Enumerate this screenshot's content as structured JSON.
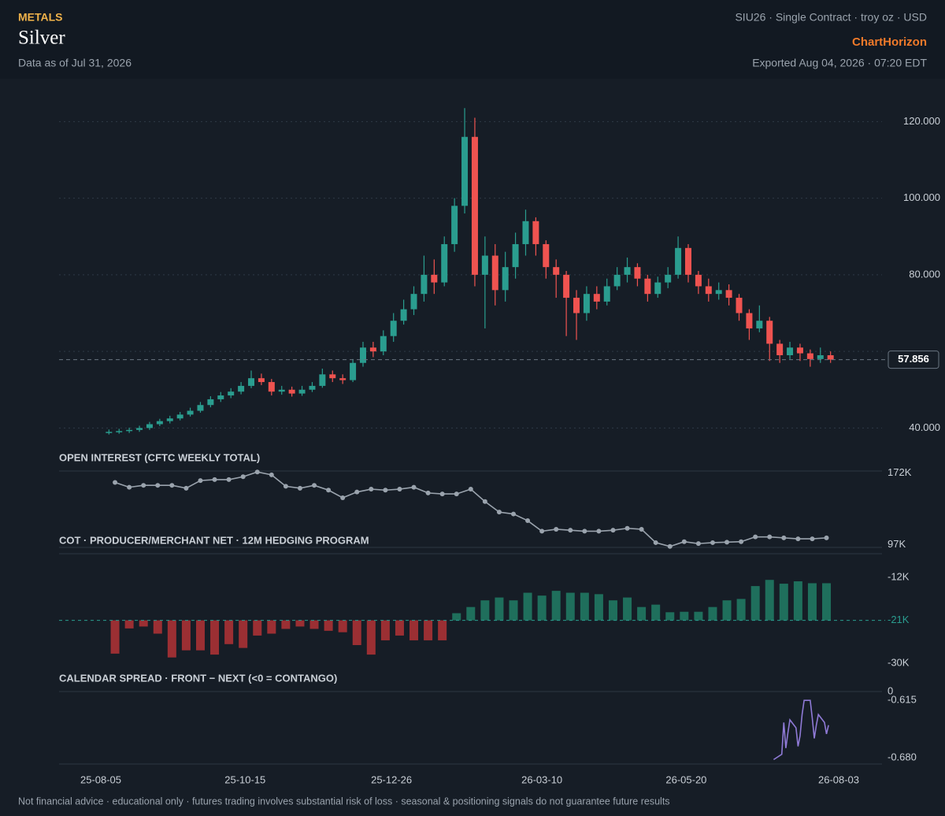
{
  "header": {
    "category": "METALS",
    "title": "Silver",
    "data_as_of": "Data as of Jul 31, 2026",
    "contract": "SIU26 · Single Contract · troy oz · USD",
    "brand": "ChartHorizon",
    "exported": "Exported Aug 04, 2026 · 07:20 EDT"
  },
  "footer": "Not financial advice · educational only · futures trading involves substantial risk of loss · seasonal & positioning signals do not guarantee future results",
  "x_axis": {
    "xlim": [
      "25-08-05",
      "26-08-03"
    ],
    "xticks": [
      "25-08-05",
      "25-10-15",
      "25-12-26",
      "26-03-10",
      "26-05-20",
      "26-08-03"
    ]
  },
  "chart_data": [
    {
      "type": "candlestick",
      "x": [
        "25-08-09",
        "25-08-14",
        "25-08-19",
        "25-08-24",
        "25-08-29",
        "25-09-03",
        "25-09-08",
        "25-09-13",
        "25-09-18",
        "25-09-23",
        "25-09-28",
        "25-10-03",
        "25-10-08",
        "25-10-13",
        "25-10-18",
        "25-10-23",
        "25-10-28",
        "25-11-02",
        "25-11-07",
        "25-11-12",
        "25-11-17",
        "25-11-22",
        "25-11-27",
        "25-12-02",
        "25-12-07",
        "25-12-12",
        "25-12-17",
        "25-12-22",
        "25-12-27",
        "26-01-01",
        "26-01-06",
        "26-01-11",
        "26-01-16",
        "26-01-21",
        "26-01-26",
        "26-01-31",
        "26-02-05",
        "26-02-10",
        "26-02-15",
        "26-02-20",
        "26-02-25",
        "26-03-02",
        "26-03-07",
        "26-03-12",
        "26-03-17",
        "26-03-22",
        "26-03-27",
        "26-04-01",
        "26-04-06",
        "26-04-11",
        "26-04-16",
        "26-04-21",
        "26-04-26",
        "26-05-01",
        "26-05-06",
        "26-05-11",
        "26-05-16",
        "26-05-21",
        "26-05-26",
        "26-05-31",
        "26-06-05",
        "26-06-10",
        "26-06-15",
        "26-06-20",
        "26-06-25",
        "26-06-30",
        "26-07-05",
        "26-07-10",
        "26-07-15",
        "26-07-20",
        "26-07-25",
        "26-07-30"
      ],
      "open": [
        38.8,
        39.0,
        39.2,
        39.5,
        40.0,
        41.0,
        41.8,
        42.5,
        43.5,
        44.5,
        46.0,
        47.5,
        48.5,
        49.5,
        51.0,
        53.0,
        52.0,
        49.5,
        50.0,
        49.0,
        50.0,
        51.0,
        54.0,
        53.0,
        52.5,
        57.0,
        61.0,
        60.0,
        64.0,
        68.0,
        71.0,
        75.0,
        80.0,
        78.0,
        88.0,
        98.0,
        116.0,
        80.0,
        85.0,
        76.0,
        82.0,
        88.0,
        94.0,
        88.0,
        82.0,
        80.0,
        74.0,
        70.0,
        75.0,
        73.0,
        77.0,
        80.0,
        82.0,
        79.0,
        75.0,
        78.0,
        80.0,
        87.0,
        80.0,
        77.0,
        75.0,
        76.0,
        74.0,
        70.0,
        66.0,
        68.0,
        62.0,
        59.0,
        61.0,
        59.5,
        58.0,
        59.0
      ],
      "high": [
        39.6,
        39.8,
        40.1,
        40.6,
        41.6,
        42.4,
        43.2,
        44.2,
        45.3,
        46.8,
        48.3,
        49.4,
        50.4,
        52.0,
        55.0,
        54.2,
        52.8,
        51.0,
        50.8,
        51.0,
        52.0,
        55.5,
        55.0,
        54.0,
        58.0,
        62.5,
        62.5,
        65.5,
        70.0,
        73.5,
        77.0,
        85.0,
        84.0,
        90.0,
        100.0,
        123.5,
        121.0,
        90.0,
        88.0,
        86.0,
        91.0,
        97.0,
        95.0,
        89.0,
        84.0,
        81.0,
        76.0,
        77.0,
        77.0,
        79.0,
        82.0,
        84.5,
        83.0,
        80.0,
        79.5,
        82.0,
        90.0,
        88.0,
        81.0,
        79.0,
        78.0,
        77.5,
        75.0,
        71.0,
        72.0,
        69.0,
        63.0,
        62.5,
        62.0,
        60.5,
        61.0,
        60.0
      ],
      "low": [
        38.3,
        38.5,
        38.7,
        39.0,
        39.5,
        40.5,
        41.2,
        42.0,
        43.0,
        44.0,
        45.4,
        46.8,
        47.8,
        48.8,
        50.4,
        51.2,
        48.5,
        48.7,
        48.2,
        48.4,
        49.4,
        50.5,
        52.0,
        51.5,
        52.0,
        56.0,
        58.5,
        59.0,
        62.5,
        67.0,
        69.5,
        73.0,
        75.0,
        77.0,
        86.0,
        96.0,
        77.0,
        66.0,
        72.0,
        73.0,
        79.0,
        85.0,
        85.0,
        79.0,
        74.0,
        64.0,
        63.0,
        68.0,
        71.0,
        72.0,
        76.0,
        78.0,
        77.0,
        73.0,
        74.0,
        76.5,
        79.0,
        78.0,
        75.0,
        73.0,
        73.5,
        72.0,
        68.0,
        63.0,
        65.0,
        57.5,
        57.0,
        58.0,
        57.5,
        56.0,
        57.0,
        57.0
      ],
      "close": [
        39.0,
        39.2,
        39.5,
        40.0,
        41.0,
        41.8,
        42.5,
        43.5,
        44.5,
        46.0,
        47.5,
        48.5,
        49.5,
        51.0,
        53.0,
        52.0,
        49.5,
        50.0,
        49.0,
        50.0,
        51.0,
        54.0,
        53.0,
        52.5,
        57.0,
        61.0,
        60.0,
        64.0,
        68.0,
        71.0,
        75.0,
        80.0,
        78.0,
        88.0,
        98.0,
        116.0,
        80.0,
        85.0,
        76.0,
        82.0,
        88.0,
        94.0,
        88.0,
        82.0,
        80.0,
        74.0,
        70.0,
        75.0,
        73.0,
        77.0,
        80.0,
        82.0,
        79.0,
        75.0,
        78.0,
        80.0,
        87.0,
        80.0,
        77.0,
        75.0,
        76.0,
        74.0,
        70.0,
        66.0,
        68.0,
        62.0,
        59.0,
        61.0,
        59.5,
        58.0,
        59.0,
        57.856
      ],
      "up_color": "#2a9d8f",
      "down_color": "#ef5350",
      "ylim": [
        37,
        125
      ],
      "yticks": [
        {
          "value": 40,
          "label": "40.000"
        },
        {
          "value": 80,
          "label": "80.000"
        },
        {
          "value": 100,
          "label": "100.000"
        },
        {
          "value": 120,
          "label": "120.000"
        }
      ],
      "gridlines": [
        40,
        60,
        80,
        100,
        120
      ],
      "grid": true
    },
    {
      "type": "line",
      "title": "OPEN INTEREST (CFTC WEEKLY TOTAL)",
      "x": [
        "25-08-12",
        "25-08-19",
        "25-08-26",
        "25-09-02",
        "25-09-09",
        "25-09-16",
        "25-09-23",
        "25-09-30",
        "25-10-07",
        "25-10-14",
        "25-10-21",
        "25-10-28",
        "25-11-04",
        "25-11-11",
        "25-11-18",
        "25-11-25",
        "25-12-02",
        "25-12-09",
        "25-12-16",
        "25-12-23",
        "25-12-30",
        "26-01-06",
        "26-01-13",
        "26-01-20",
        "26-01-27",
        "26-02-03",
        "26-02-10",
        "26-02-17",
        "26-02-24",
        "26-03-03",
        "26-03-10",
        "26-03-17",
        "26-03-24",
        "26-03-31",
        "26-04-07",
        "26-04-14",
        "26-04-21",
        "26-04-28",
        "26-05-05",
        "26-05-12",
        "26-05-19",
        "26-05-26",
        "26-06-02",
        "26-06-09",
        "26-06-16",
        "26-06-23",
        "26-06-30",
        "26-07-07",
        "26-07-14",
        "26-07-21",
        "26-07-28"
      ],
      "values": [
        162000,
        157000,
        159000,
        159000,
        159000,
        156000,
        164000,
        165000,
        165000,
        168000,
        173000,
        170000,
        158000,
        156000,
        159000,
        154000,
        146000,
        152000,
        155000,
        154000,
        155000,
        157000,
        151000,
        150000,
        150000,
        155000,
        142000,
        131000,
        129000,
        122000,
        111000,
        113000,
        112000,
        111000,
        111000,
        112000,
        114000,
        113000,
        99000,
        95000,
        100000,
        98000,
        99000,
        99500,
        100000,
        105000,
        105000,
        104000,
        103000,
        103000,
        104000
      ],
      "color": "#9aa3ad",
      "ylim": [
        94000,
        174000
      ],
      "yticks": [
        {
          "value": 172000,
          "label": "172K"
        },
        {
          "value": 97000,
          "label": "97K"
        }
      ],
      "markers": true
    },
    {
      "type": "bar",
      "title": "COT · PRODUCER/MERCHANT NET · 12M HEDGING PROGRAM",
      "x": [
        "25-08-12",
        "25-08-19",
        "25-08-26",
        "25-09-02",
        "25-09-09",
        "25-09-16",
        "25-09-23",
        "25-09-30",
        "25-10-07",
        "25-10-14",
        "25-10-21",
        "25-10-28",
        "25-11-04",
        "25-11-11",
        "25-11-18",
        "25-11-25",
        "25-12-02",
        "25-12-09",
        "25-12-16",
        "25-12-23",
        "25-12-30",
        "26-01-06",
        "26-01-13",
        "26-01-20",
        "26-01-27",
        "26-02-03",
        "26-02-10",
        "26-02-17",
        "26-02-24",
        "26-03-03",
        "26-03-10",
        "26-03-17",
        "26-03-24",
        "26-03-31",
        "26-04-07",
        "26-04-14",
        "26-04-21",
        "26-04-28",
        "26-05-05",
        "26-05-12",
        "26-05-19",
        "26-05-26",
        "26-06-02",
        "26-06-09",
        "26-06-16",
        "26-06-23",
        "26-06-30",
        "26-07-07",
        "26-07-14",
        "26-07-21",
        "26-07-28"
      ],
      "values": [
        -28000,
        -22700,
        -22300,
        -23800,
        -28800,
        -27300,
        -27300,
        -28200,
        -26000,
        -26800,
        -24200,
        -23800,
        -22800,
        -22300,
        -22800,
        -23200,
        -23500,
        -26200,
        -28200,
        -25200,
        -24200,
        -25200,
        -25200,
        -25200,
        -19500,
        -18200,
        -16800,
        -16200,
        -16800,
        -15200,
        -15800,
        -14800,
        -15200,
        -15200,
        -15500,
        -16800,
        -16200,
        -18200,
        -17700,
        -19300,
        -19200,
        -19200,
        -18200,
        -16800,
        -16500,
        -13800,
        -12500,
        -13300,
        -12800,
        -13200,
        -13200
      ],
      "baseline": -21000,
      "up_color": "#1f6f5c",
      "down_color": "#9b2f33",
      "baseline_color": "#2a9d8f",
      "ylim": [
        -31000,
        -7000
      ],
      "yticks": [
        {
          "value": -12000,
          "label": "-12K"
        },
        {
          "value": -21000,
          "label": "-21K"
        },
        {
          "value": -30000,
          "label": "-30K"
        }
      ]
    },
    {
      "type": "line",
      "title": "CALENDAR SPREAD · FRONT − NEXT (<0 = CONTANGO)",
      "corner_label": "0",
      "x": [
        "26-07-02",
        "26-07-06",
        "26-07-07",
        "26-07-08",
        "26-07-09",
        "26-07-10",
        "26-07-13",
        "26-07-14",
        "26-07-15",
        "26-07-16",
        "26-07-17",
        "26-07-20",
        "26-07-21",
        "26-07-22",
        "26-07-23",
        "26-07-24",
        "26-07-27",
        "26-07-28",
        "26-07-29"
      ],
      "values": [
        -0.682,
        -0.676,
        -0.64,
        -0.669,
        -0.652,
        -0.637,
        -0.646,
        -0.667,
        -0.655,
        -0.631,
        -0.615,
        -0.615,
        -0.635,
        -0.658,
        -0.643,
        -0.631,
        -0.64,
        -0.653,
        -0.643
      ],
      "color": "#8f7ad6",
      "ylim": [
        -0.687,
        -0.605
      ],
      "yticks": [
        {
          "value": -0.615,
          "label": "-0.615"
        },
        {
          "value": -0.68,
          "label": "-0.680"
        }
      ],
      "markers": false
    }
  ]
}
